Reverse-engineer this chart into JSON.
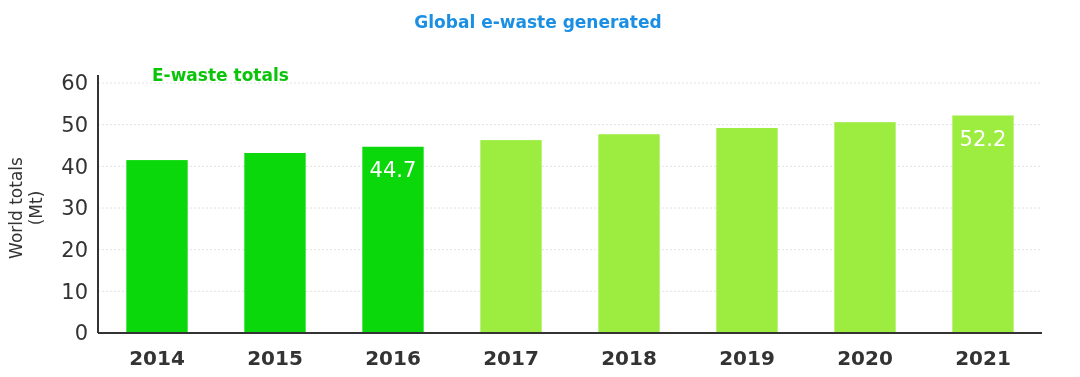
{
  "chart_data": {
    "type": "bar",
    "title": "Global e-waste generated",
    "ylabel": "World totals (Mt)",
    "annotations": [
      "E-waste totals"
    ],
    "categories": [
      "2014",
      "2015",
      "2016",
      "2017",
      "2018",
      "2019",
      "2020",
      "2021"
    ],
    "values": [
      41.5,
      43.2,
      44.7,
      46.3,
      47.7,
      49.2,
      50.6,
      52.2
    ],
    "colors": [
      "#0ad80a",
      "#0ad80a",
      "#0ad80a",
      "#9ded40",
      "#9ded40",
      "#9ded40",
      "#9ded40",
      "#9ded40"
    ],
    "value_labels": [
      null,
      null,
      "44.7",
      null,
      null,
      null,
      null,
      "52.2"
    ],
    "ylim": [
      0,
      60
    ],
    "yticks": [
      0,
      10,
      20,
      30,
      40,
      50,
      60
    ],
    "grid": "y"
  }
}
